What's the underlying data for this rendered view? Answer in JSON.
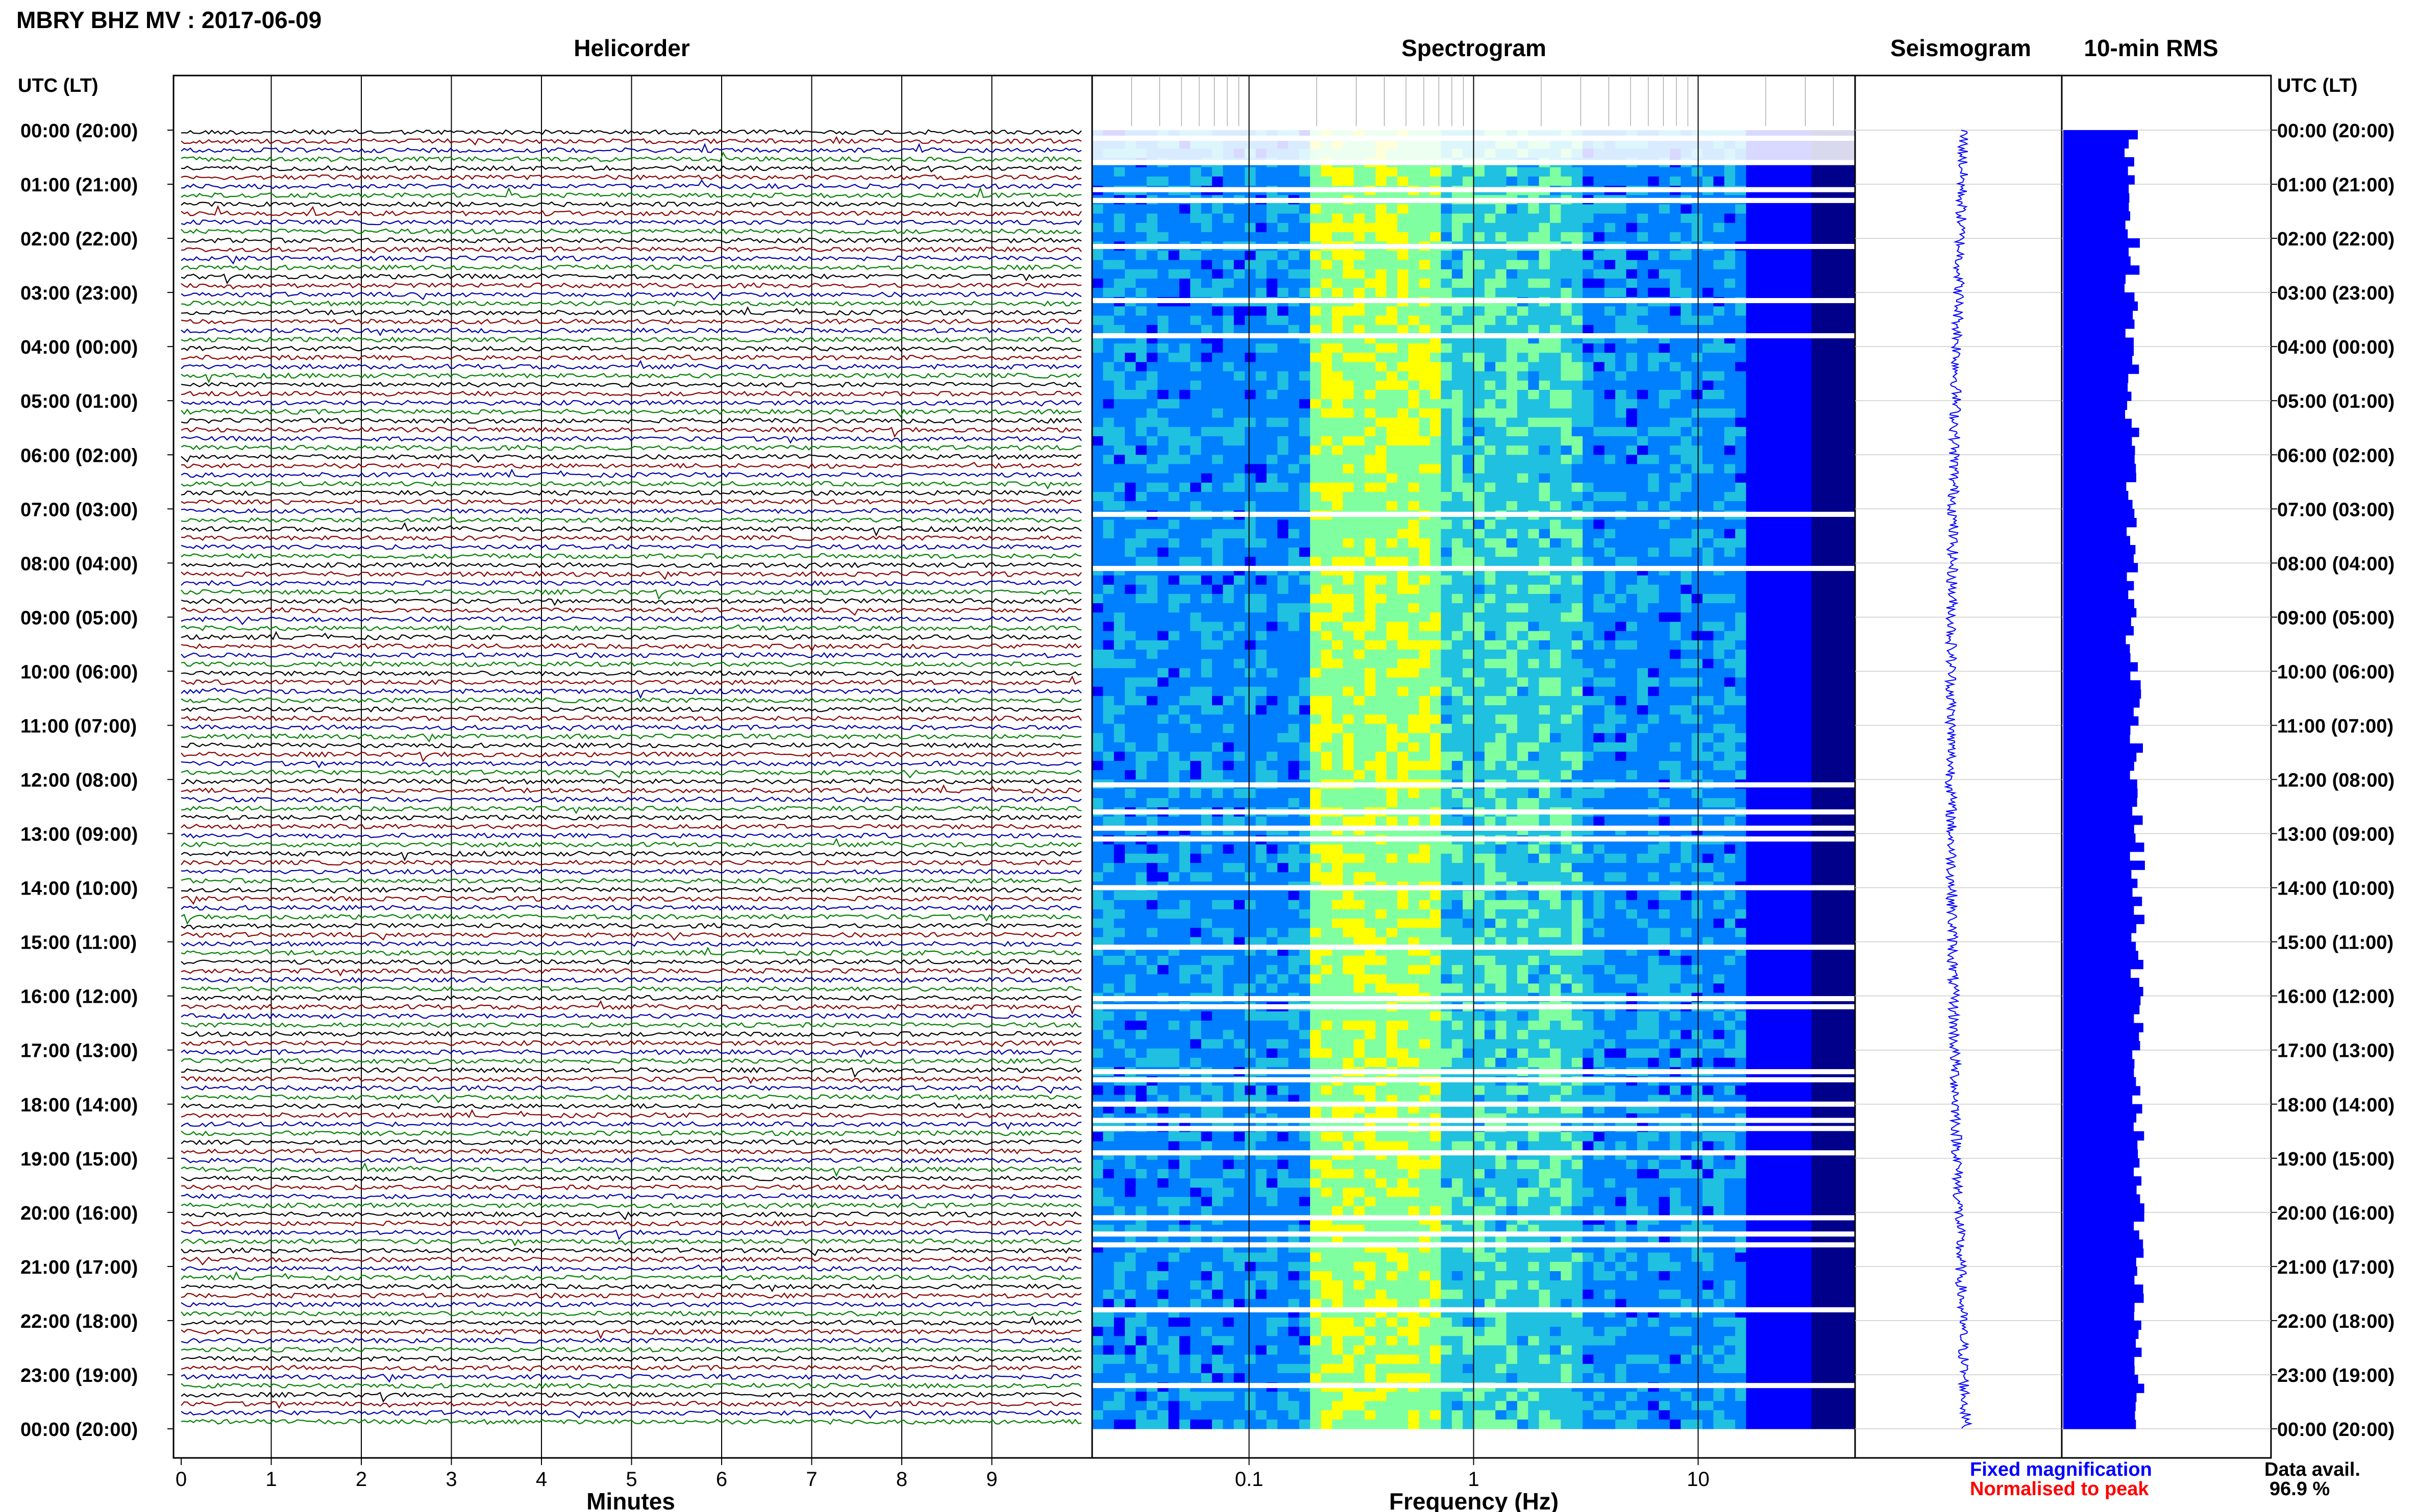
{
  "title": "MBRY BHZ MV : 2017-06-09",
  "panels": {
    "helicorder": "Helicorder",
    "spectrogram": "Spectrogram",
    "seismogram": "Seismogram",
    "rms": "10-min RMS"
  },
  "time_axis_label": "UTC (LT)",
  "time_labels": [
    "00:00 (20:00)",
    "01:00 (21:00)",
    "02:00 (22:00)",
    "03:00 (23:00)",
    "04:00 (00:00)",
    "05:00 (01:00)",
    "06:00 (02:00)",
    "07:00 (03:00)",
    "08:00 (04:00)",
    "09:00 (05:00)",
    "10:00 (06:00)",
    "11:00 (07:00)",
    "12:00 (08:00)",
    "13:00 (09:00)",
    "14:00 (10:00)",
    "15:00 (11:00)",
    "16:00 (12:00)",
    "17:00 (13:00)",
    "18:00 (14:00)",
    "19:00 (15:00)",
    "20:00 (16:00)",
    "21:00 (17:00)",
    "22:00 (18:00)",
    "23:00 (19:00)",
    "00:00 (20:00)"
  ],
  "x_axes": {
    "minutes_label": "Minutes",
    "minutes_ticks": [
      "0",
      "1",
      "2",
      "3",
      "4",
      "5",
      "6",
      "7",
      "8",
      "9"
    ],
    "frequency_label": "Frequency (Hz)",
    "frequency_ticks": [
      "0.1",
      "1",
      "10"
    ]
  },
  "legend": {
    "fixed": "Fixed magnification",
    "normalised": "Normalised to peak",
    "fixed_color": "#0000ff",
    "normalised_color": "#ff0000"
  },
  "data_availability": {
    "label": "Data avail.",
    "value": "96.9 %"
  },
  "chart_data": [
    {
      "type": "line",
      "panel": "helicorder",
      "xlabel": "Minutes",
      "xlim": [
        0,
        10
      ],
      "rows_per_hour": 6,
      "hours": 24,
      "trace_colors": [
        "#000000",
        "#8b0000",
        "#0000aa",
        "#008000"
      ]
    },
    {
      "type": "heatmap",
      "panel": "spectrogram",
      "xlabel": "Frequency (Hz)",
      "xscale": "log",
      "xlim": [
        0.02,
        50
      ],
      "colormap": [
        "#00008b",
        "#0000ff",
        "#0080ff",
        "#20c0e0",
        "#80ffa0",
        "#ffff00"
      ],
      "gap_hours": [
        0.15,
        0.6,
        1.1,
        1.3,
        2.15,
        3.15,
        3.8,
        7.1,
        8.1,
        12.1,
        12.6,
        12.9,
        13.1,
        14.0,
        15.1,
        16.05,
        16.2,
        17.4,
        17.55,
        18.0,
        18.3,
        18.45,
        18.9,
        20.1,
        20.4,
        20.6,
        21.8,
        23.2
      ]
    },
    {
      "type": "line",
      "panel": "seismogram",
      "note_colors": [
        "#0000ff"
      ]
    },
    {
      "type": "bar",
      "panel": "10-min RMS",
      "orientation": "horizontal",
      "color": "#0000ff",
      "y_hours": [
        0,
        24
      ]
    }
  ]
}
